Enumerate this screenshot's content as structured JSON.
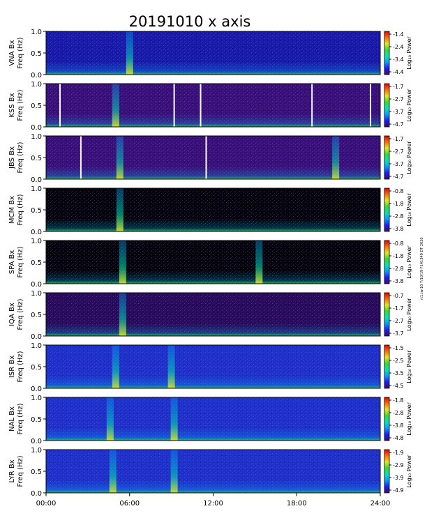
{
  "figure": {
    "title": "20191010  x axis",
    "side_note": "rt1.tw.10 7/10/19 F141349 DT 2020"
  },
  "chart_data": {
    "type": "heatmap",
    "x_axis": {
      "range": [
        "00:00",
        "24:00"
      ],
      "ticks": [
        "00:00",
        "06:00",
        "12:00",
        "18:00",
        "24:00"
      ]
    },
    "y_axis": {
      "label_suffix": "Freq (Hz)",
      "range": [
        0.0,
        1.0
      ],
      "ticks": [
        "0.0",
        "0.5",
        "1.0"
      ]
    },
    "colorbar_label": "Log₁₀ Power",
    "colormap": [
      "#3a0a6e",
      "#1c1cff",
      "#00a0ff",
      "#00e6b4",
      "#32dc32",
      "#e6e61e",
      "#ff6e00",
      "#e60000"
    ],
    "panels": [
      {
        "station": "VNA Bx",
        "cbar_ticks": [
          "-1.4",
          "-2.4",
          "-3.4",
          "-4.4"
        ],
        "bg": "dark-blue",
        "events_hours": [
          6.0
        ],
        "gaps_hours": []
      },
      {
        "station": "KSS Bx",
        "cbar_ticks": [
          "-1.7",
          "-2.7",
          "-3.7",
          "-4.7"
        ],
        "bg": "purple",
        "events_hours": [
          5.0
        ],
        "gaps_hours": [
          1.0,
          9.2,
          11.1,
          19.1,
          23.3
        ]
      },
      {
        "station": "JBS Bx",
        "cbar_ticks": [
          "-1.7",
          "-2.7",
          "-3.7",
          "-4.7"
        ],
        "bg": "purple",
        "events_hours": [
          5.3,
          20.8
        ],
        "gaps_hours": [
          2.5,
          11.5
        ]
      },
      {
        "station": "MCM Bx",
        "cbar_ticks": [
          "-0.8",
          "-1.8",
          "-2.8",
          "-3.8"
        ],
        "bg": "black",
        "events_hours": [
          5.3
        ],
        "gaps_hours": []
      },
      {
        "station": "SPA Bx",
        "cbar_ticks": [
          "-0.8",
          "-1.8",
          "-2.8",
          "-3.8"
        ],
        "bg": "black",
        "events_hours": [
          5.5,
          15.3
        ],
        "gaps_hours": []
      },
      {
        "station": "IQA Bx",
        "cbar_ticks": [
          "-0.7",
          "-1.7",
          "-2.7",
          "-3.7"
        ],
        "bg": "purple-dark",
        "events_hours": [
          5.5
        ],
        "gaps_hours": []
      },
      {
        "station": "ISR Bx",
        "cbar_ticks": [
          "-1.5",
          "-2.5",
          "-3.5",
          "-4.5"
        ],
        "bg": "blue",
        "events_hours": [
          5.0,
          9.0
        ],
        "gaps_hours": []
      },
      {
        "station": "NAL Bx",
        "cbar_ticks": [
          "-1.8",
          "-2.8",
          "-3.8",
          "-4.8"
        ],
        "bg": "blue",
        "events_hours": [
          4.6,
          9.2
        ],
        "gaps_hours": []
      },
      {
        "station": "LYR Bx",
        "cbar_ticks": [
          "-1.9",
          "-2.9",
          "-3.9",
          "-4.9"
        ],
        "bg": "blue",
        "events_hours": [
          4.8,
          9.2
        ],
        "gaps_hours": []
      }
    ]
  }
}
